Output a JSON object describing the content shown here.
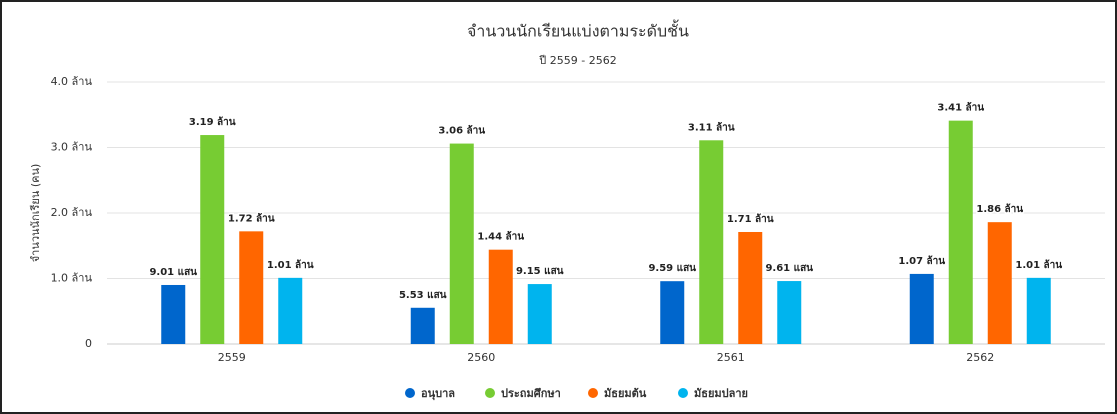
{
  "chart_data": {
    "type": "bar",
    "title": "จำนวนนักเรียนแบ่งตามระดับชั้น",
    "subtitle": "ปี 2559 - 2562",
    "y_label": "จำนวนนักเรียน (คน)",
    "categories": [
      "2559",
      "2560",
      "2561",
      "2562"
    ],
    "series": [
      {
        "name": "อนุบาล",
        "color": "#0066cc",
        "values": [
          0.901,
          0.553,
          0.959,
          1.07
        ],
        "value_labels": [
          "9.01 แสน",
          "5.53 แสน",
          "9.59 แสน",
          "1.07 ล้าน"
        ]
      },
      {
        "name": "ประถมศึกษา",
        "color": "#77cc33",
        "values": [
          3.19,
          3.06,
          3.11,
          3.41
        ],
        "value_labels": [
          "3.19 ล้าน",
          "3.06 ล้าน",
          "3.11 ล้าน",
          "3.41 ล้าน"
        ]
      },
      {
        "name": "มัธยมต้น",
        "color": "#ff6600",
        "values": [
          1.72,
          1.44,
          1.71,
          1.86
        ],
        "value_labels": [
          "1.72 ล้าน",
          "1.44 ล้าน",
          "1.71 ล้าน",
          "1.86 ล้าน"
        ]
      },
      {
        "name": "มัธยมปลาย",
        "color": "#00b4ee",
        "values": [
          1.01,
          0.915,
          0.961,
          1.01
        ],
        "value_labels": [
          "1.01 ล้าน",
          "9.15 แสน",
          "9.61 แสน",
          "1.01 ล้าน"
        ]
      }
    ],
    "ylim": [
      0,
      4
    ],
    "yticks": [
      0,
      {
        "value": 1,
        "label": "1.0 ล้าน"
      },
      {
        "value": 2,
        "label": "2.0 ล้าน"
      },
      {
        "value": 3,
        "label": "3.0 ล้าน"
      },
      {
        "value": 4,
        "label": "4.0 ล้าน"
      }
    ],
    "grid": true
  }
}
